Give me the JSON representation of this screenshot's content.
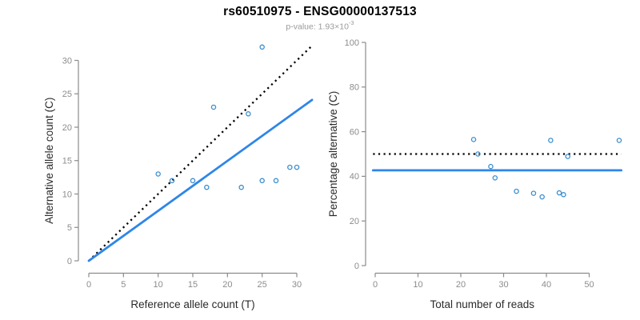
{
  "header": {
    "title": "rs60510975 - ENSG00000137513",
    "subtitle_prefix": "p-value: 1.93×10",
    "subtitle_exponent": "-3"
  },
  "colors": {
    "point_blue": "#3a8ecf",
    "line_blue": "#2e86e8",
    "dotted_black": "#000000",
    "axis_gray": "#8b8b8b",
    "tick_label_gray": "#8c8c8c",
    "axis_title_dark": "#2b2b2b",
    "title_black": "#000000",
    "subtitle_gray": "#9a9a9a"
  },
  "chart_data": [
    {
      "type": "scatter",
      "panel": "left-allele-count",
      "xlabel": "Reference allele count (T)",
      "ylabel": "Alternative allele count (C)",
      "xticks": [
        0,
        5,
        10,
        15,
        20,
        25,
        30
      ],
      "yticks": [
        0,
        5,
        10,
        15,
        20,
        25,
        30
      ],
      "xlim": [
        0,
        32.3
      ],
      "ylim": [
        0,
        33.3
      ],
      "grid": false,
      "legend": "none",
      "points": [
        [
          10,
          13
        ],
        [
          12,
          12
        ],
        [
          15,
          12
        ],
        [
          17,
          11
        ],
        [
          18,
          23
        ],
        [
          22,
          11
        ],
        [
          23,
          22
        ],
        [
          25,
          12
        ],
        [
          25,
          32
        ],
        [
          27,
          12
        ],
        [
          29,
          14
        ],
        [
          30,
          14
        ]
      ],
      "lines": [
        {
          "name": "identity-line",
          "slope": 1.0,
          "intercept": 0,
          "x_range": [
            0,
            32.3
          ],
          "style": "dotted",
          "color": "black"
        },
        {
          "name": "fit-line",
          "slope": 0.748,
          "intercept": 0,
          "x_range": [
            0,
            32.2
          ],
          "style": "solid",
          "color": "blue"
        }
      ]
    },
    {
      "type": "scatter",
      "panel": "right-percentage",
      "xlabel": "Total number of reads",
      "ylabel": "Percentage alternative (C)",
      "xticks": [
        0,
        10,
        20,
        30,
        40,
        50
      ],
      "yticks": [
        0,
        20,
        40,
        60,
        80,
        100
      ],
      "xlim": [
        0,
        57.5
      ],
      "ylim": [
        0,
        100
      ],
      "grid": false,
      "legend": "none",
      "points": [
        [
          23,
          56.5
        ],
        [
          24,
          50.0
        ],
        [
          27,
          44.4
        ],
        [
          28,
          39.3
        ],
        [
          33,
          33.3
        ],
        [
          37,
          32.4
        ],
        [
          39,
          30.8
        ],
        [
          41,
          56.1
        ],
        [
          43,
          32.6
        ],
        [
          44,
          31.8
        ],
        [
          45,
          48.9
        ],
        [
          57,
          56.1
        ]
      ],
      "lines": [
        {
          "name": "expected-50pct-line",
          "slope": 0,
          "intercept": 50.0,
          "x_range": [
            -0.5,
            57.5
          ],
          "style": "dotted",
          "color": "black"
        },
        {
          "name": "mean-pct-line",
          "slope": 0,
          "intercept": 42.7,
          "x_range": [
            -0.5,
            57.5
          ],
          "style": "solid",
          "color": "blue"
        }
      ]
    }
  ]
}
